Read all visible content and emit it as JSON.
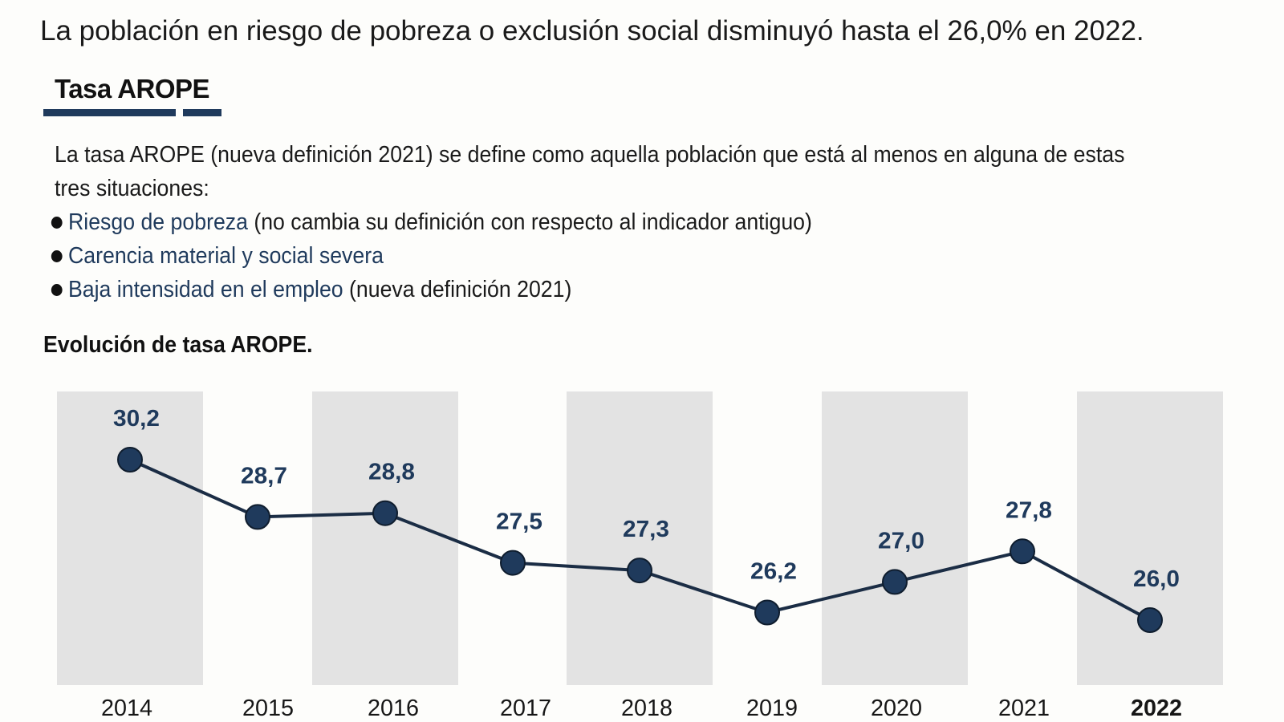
{
  "headline": "La población en riesgo de pobreza o exclusión social disminuyó hasta el 26,0% en 2022.",
  "section": {
    "title": "Tasa AROPE",
    "definition": "La tasa AROPE (nueva definición 2021) se define como aquella población que está al menos en alguna de estas tres situaciones:",
    "bullets": [
      {
        "term": "Riesgo de pobreza",
        "note": "(no cambia su definición con respecto al indicador antiguo)"
      },
      {
        "term": "Carencia material y social severa",
        "note": ""
      },
      {
        "term": "Baja intensidad en el empleo",
        "note": "(nueva definición 2021)"
      }
    ]
  },
  "colors": {
    "accent": "#1f3a5c",
    "band": "#e3e3e3",
    "line": "#1b2d45"
  },
  "chart_data": {
    "type": "line",
    "title": "Evolución de tasa AROPE.",
    "xlabel": "",
    "ylabel": "",
    "ylim": [
      25.0,
      31.0
    ],
    "grid": false,
    "legend": "none",
    "categories": [
      "2014",
      "2015",
      "2016",
      "2017",
      "2018",
      "2019",
      "2020",
      "2021",
      "2022"
    ],
    "value_labels": [
      "30,2",
      "28,7",
      "28,8",
      "27,5",
      "27,3",
      "26,2",
      "27,0",
      "27,8",
      "26,0"
    ],
    "series": [
      {
        "values": [
          30.2,
          28.7,
          28.8,
          27.5,
          27.3,
          26.2,
          27.0,
          27.8,
          26.0
        ]
      }
    ],
    "highlighted_category": "2022",
    "shaded_columns": [
      "2014",
      "2016",
      "2018",
      "2020",
      "2022"
    ]
  }
}
